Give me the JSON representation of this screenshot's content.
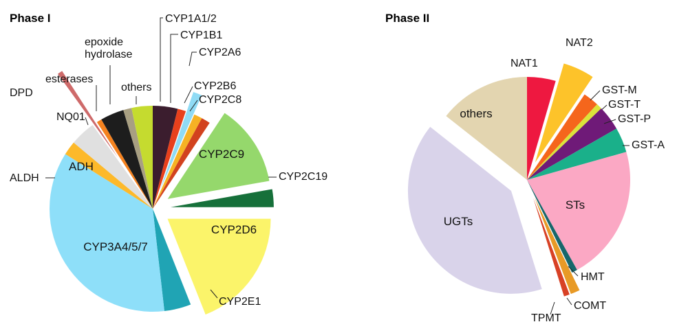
{
  "chart_data": [
    {
      "type": "pie",
      "title": "Phase I",
      "values_unit": "percent of slice angle (estimated)",
      "slices": [
        {
          "name": "CYP1A1/2",
          "value": 3.9,
          "color": "#3b1d2e",
          "exploded": false
        },
        {
          "name": "CYP1B1",
          "value": 1.3,
          "color": "#e8401c",
          "exploded": false
        },
        {
          "name": "CYP2A6",
          "value": 1.4,
          "color": "#8fdbf5",
          "exploded": true
        },
        {
          "name": "CYP2B6",
          "value": 1.3,
          "color": "#f6b224",
          "exploded": false
        },
        {
          "name": "CYP2C8",
          "value": 1.4,
          "color": "#d2421e",
          "exploded": false
        },
        {
          "name": "CYP2C9",
          "value": 12.9,
          "color": "#95d86c",
          "exploded": true
        },
        {
          "name": "CYP2C19",
          "value": 2.8,
          "color": "#16703a",
          "exploded": true
        },
        {
          "name": "CYP2D6",
          "value": 19.0,
          "color": "#fbf46a",
          "exploded": true
        },
        {
          "name": "CYP2E1",
          "value": 4.2,
          "color": "#20a4b4",
          "exploded": false
        },
        {
          "name": "CYP3A4/5/7",
          "value": 35.7,
          "color": "#8edff9",
          "exploded": false
        },
        {
          "name": "ALDH",
          "value": 2.2,
          "color": "#fdb92a",
          "exploded": false
        },
        {
          "name": "ADH",
          "value": 4.0,
          "color": "#e0e0e0",
          "exploded": false
        },
        {
          "name": "DPD",
          "value": 0.8,
          "color": "#ce6a6a",
          "exploded": true
        },
        {
          "name": "NQ01",
          "value": 0.8,
          "color": "#f5821f",
          "exploded": false
        },
        {
          "name": "esterases",
          "value": 3.7,
          "color": "#1d1d1d",
          "exploded": false
        },
        {
          "name": "epoxide hydrolase",
          "value": 1.3,
          "color": "#a89f82",
          "exploded": false
        },
        {
          "name": "others",
          "value": 3.3,
          "color": "#c5db2f",
          "exploded": false
        }
      ]
    },
    {
      "type": "pie",
      "title": "Phase II",
      "values_unit": "percent of slice angle (estimated)",
      "slices": [
        {
          "name": "NAT1",
          "value": 4.0,
          "color": "#ee1840",
          "exploded": false
        },
        {
          "name": "NAT2",
          "value": 4.4,
          "color": "#fdc32a",
          "exploded": true
        },
        {
          "name": "GST-M",
          "value": 2.2,
          "color": "#f5661c",
          "exploded": false
        },
        {
          "name": "GST-T",
          "value": 0.8,
          "color": "#dbe33a",
          "exploded": false
        },
        {
          "name": "GST-P",
          "value": 3.5,
          "color": "#6f1a78",
          "exploded": false
        },
        {
          "name": "GST-A",
          "value": 3.5,
          "color": "#1ab08a",
          "exploded": false
        },
        {
          "name": "STs",
          "value": 19.0,
          "color": "#fba8c4",
          "exploded": false
        },
        {
          "name": "HMT",
          "value": 0.8,
          "color": "#17676b",
          "exploded": false
        },
        {
          "name": "COMT",
          "value": 1.3,
          "color": "#e89a26",
          "exploded": true
        },
        {
          "name": "TPMT",
          "value": 0.8,
          "color": "#d84125",
          "exploded": true
        },
        {
          "name": "UGTs",
          "value": 36.1,
          "color": "#d9d3ea",
          "exploded": true
        },
        {
          "name": "others",
          "value": 12.8,
          "color": "#e3d5b0",
          "exploded": false
        }
      ]
    }
  ]
}
